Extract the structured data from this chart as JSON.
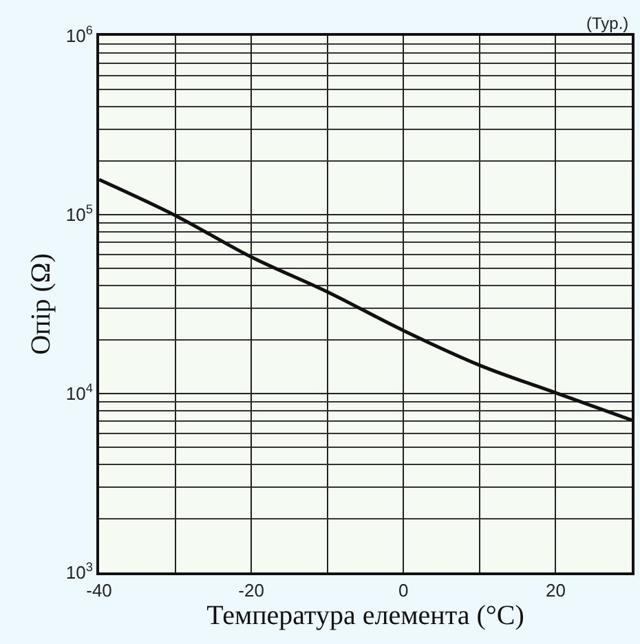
{
  "chart_data": {
    "type": "line",
    "xlabel": "Температура елемента (°C)",
    "ylabel": "Опір (Ω)",
    "annotations": [
      "(Typ.)"
    ],
    "x": [
      -40,
      -30,
      -20,
      -10,
      0,
      10,
      20,
      30
    ],
    "series": [
      {
        "color": "#111111",
        "values": [
          157000,
          99000,
          58000,
          37000,
          22500,
          14400,
          10100,
          7100
        ]
      }
    ],
    "log": true,
    "grid": true,
    "marker": "none",
    "line_style": "solid",
    "xlim": [
      -40,
      30
    ],
    "xticks": [
      -40,
      -20,
      0,
      20
    ],
    "ylim": [
      1000,
      1000000
    ],
    "yticks": [
      {
        "value": 1000,
        "label": "10$^{3}$"
      },
      {
        "value": 10000,
        "label": "10$^{4}$"
      },
      {
        "value": 100000,
        "label": "10$^{5}$"
      },
      {
        "value": 1000000,
        "label": "10$^{6}$"
      }
    ]
  }
}
